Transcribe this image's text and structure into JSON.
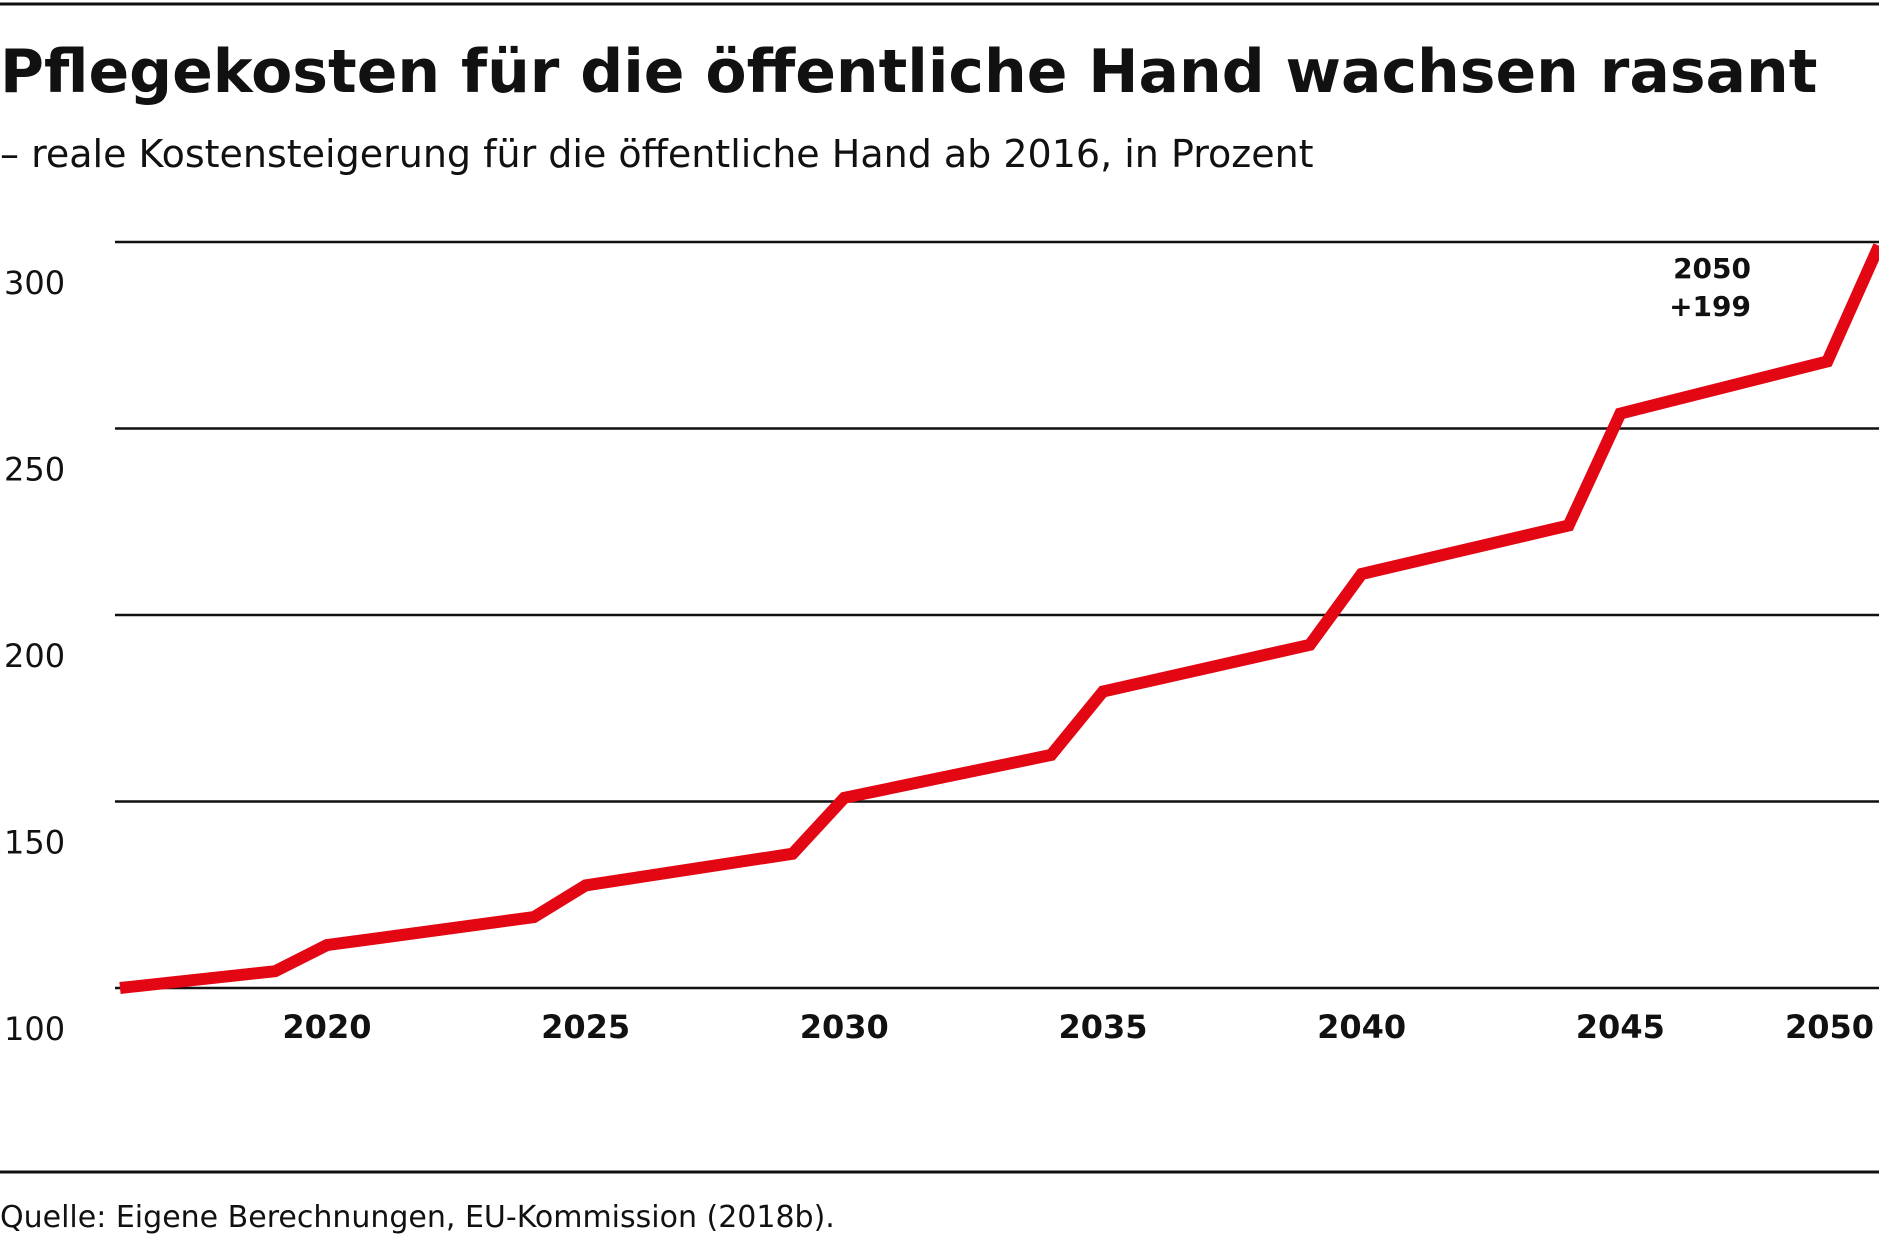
{
  "chart_data": {
    "type": "line",
    "title": "Pflegekosten für die öffentliche Hand wachsen rasant",
    "subtitle": "– reale Kostensteigerung für die öffentliche Hand ab 2016, in Prozent",
    "xlabel": "",
    "ylabel": "",
    "xlim": [
      2016,
      2050
    ],
    "ylim": [
      100,
      300
    ],
    "x_ticks": [
      2020,
      2025,
      2030,
      2035,
      2040,
      2045,
      2050
    ],
    "y_ticks": [
      100,
      150,
      200,
      250,
      300
    ],
    "grid": true,
    "series": [
      {
        "color": "#e30613",
        "x": [
          2016,
          2019,
          2020,
          2024,
          2025,
          2029,
          2030,
          2034,
          2035,
          2039,
          2040,
          2044,
          2045,
          2049,
          2050
        ],
        "values": [
          100,
          104.5,
          111.5,
          119,
          127.5,
          136,
          151,
          162.5,
          179.5,
          192,
          211,
          224,
          254,
          268,
          299
        ]
      }
    ],
    "annotation": {
      "year_label": "2050",
      "value_label": "+199"
    },
    "source": "Quelle: Eigene Berechnungen, EU-Kommission (2018b)."
  }
}
